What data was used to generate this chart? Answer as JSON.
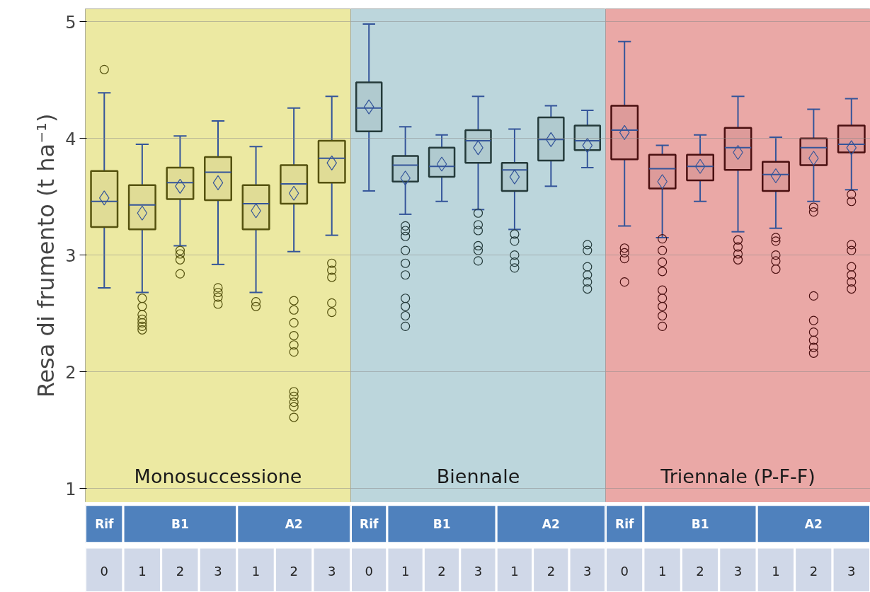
{
  "chart_data": [
    {
      "type": "box",
      "ylabel": "Resa di frumento (t ha⁻¹)",
      "categories": [
        "0",
        "1",
        "2",
        "3",
        "1",
        "2",
        "3"
      ],
      "annotations": [
        "Rif",
        "B1",
        "A2"
      ],
      "ylim": [
        0.88,
        5.11
      ],
      "yticks": [
        1,
        2,
        3,
        4,
        5
      ],
      "grid": "y",
      "bands": [
        {
          "axis": "y",
          "from": 0.88,
          "to": 5.11,
          "label": "Monosuccessione",
          "color": "#ece9a2"
        }
      ],
      "series": [
        {
          "color": "#55520f",
          "boxes": [
            {
              "low": 2.72,
              "q1": 3.24,
              "median": 3.46,
              "q3": 3.72,
              "high": 4.39,
              "mean": 3.49,
              "outliers": [
                4.59
              ]
            },
            {
              "low": 2.68,
              "q1": 3.22,
              "median": 3.43,
              "q3": 3.6,
              "high": 3.95,
              "mean": 3.36,
              "outliers": [
                2.63,
                2.56,
                2.49,
                2.45,
                2.42,
                2.39,
                2.36
              ]
            },
            {
              "low": 3.08,
              "q1": 3.48,
              "median": 3.62,
              "q3": 3.75,
              "high": 4.02,
              "mean": 3.59,
              "outliers": [
                3.04,
                3.01,
                2.96,
                2.84
              ]
            },
            {
              "low": 2.92,
              "q1": 3.47,
              "median": 3.71,
              "q3": 3.84,
              "high": 4.15,
              "mean": 3.62,
              "outliers": [
                2.72,
                2.68,
                2.64,
                2.58
              ]
            },
            {
              "low": 2.68,
              "q1": 3.22,
              "median": 3.44,
              "q3": 3.6,
              "high": 3.93,
              "mean": 3.38,
              "outliers": [
                2.6,
                2.56
              ]
            },
            {
              "low": 3.03,
              "q1": 3.44,
              "median": 3.61,
              "q3": 3.77,
              "high": 4.26,
              "mean": 3.53,
              "outliers": [
                2.61,
                2.53,
                2.42,
                2.31,
                2.23,
                2.17,
                1.83,
                1.79,
                1.74,
                1.7,
                1.61
              ]
            },
            {
              "low": 3.17,
              "q1": 3.62,
              "median": 3.83,
              "q3": 3.98,
              "high": 4.36,
              "mean": 3.79,
              "outliers": [
                2.93,
                2.87,
                2.81,
                2.59,
                2.51
              ]
            }
          ]
        }
      ]
    },
    {
      "type": "box",
      "categories": [
        "0",
        "1",
        "2",
        "3",
        "1",
        "2",
        "3"
      ],
      "annotations": [
        "Rif",
        "B1",
        "A2"
      ],
      "ylim": [
        0.88,
        5.11
      ],
      "yticks": [
        1,
        2,
        3,
        4,
        5
      ],
      "grid": "y",
      "tick_labels": "x",
      "bands": [
        {
          "axis": "y",
          "from": 0.88,
          "to": 5.11,
          "label": "Biennale",
          "color": "#bcd6dc"
        }
      ],
      "series": [
        {
          "color": "#243a3a",
          "boxes": [
            {
              "low": 3.55,
              "q1": 4.06,
              "median": 4.26,
              "q3": 4.48,
              "high": 4.98,
              "mean": 4.27
            },
            {
              "low": 3.35,
              "q1": 3.63,
              "median": 3.77,
              "q3": 3.85,
              "high": 4.1,
              "mean": 3.66,
              "outliers": [
                3.25,
                3.21,
                3.16,
                3.04,
                2.93,
                2.83,
                2.63,
                2.56,
                2.48,
                2.39
              ]
            },
            {
              "low": 3.46,
              "q1": 3.67,
              "median": 3.76,
              "q3": 3.92,
              "high": 4.03,
              "mean": 3.78
            },
            {
              "low": 3.39,
              "q1": 3.79,
              "median": 3.98,
              "q3": 4.07,
              "high": 4.36,
              "mean": 3.92,
              "outliers": [
                3.36,
                3.26,
                3.21,
                3.08,
                3.04,
                2.95
              ]
            },
            {
              "low": 3.22,
              "q1": 3.55,
              "median": 3.73,
              "q3": 3.79,
              "high": 4.08,
              "mean": 3.67,
              "outliers": [
                3.18,
                3.12,
                3.0,
                2.94,
                2.89
              ]
            },
            {
              "low": 3.59,
              "q1": 3.81,
              "median": 3.99,
              "q3": 4.18,
              "high": 4.28,
              "mean": 3.99
            },
            {
              "low": 3.75,
              "q1": 3.9,
              "median": 3.98,
              "q3": 4.11,
              "high": 4.24,
              "mean": 3.94,
              "outliers": [
                3.09,
                3.04,
                2.9,
                2.83,
                2.77,
                2.71
              ]
            }
          ]
        }
      ]
    },
    {
      "type": "box",
      "categories": [
        "0",
        "1",
        "2",
        "3",
        "1",
        "2",
        "3"
      ],
      "annotations": [
        "Rif",
        "B1",
        "A2"
      ],
      "ylim": [
        0.88,
        5.11
      ],
      "yticks": [
        1,
        2,
        3,
        4,
        5
      ],
      "grid": "y",
      "tick_labels": "x",
      "bands": [
        {
          "axis": "y",
          "from": 0.88,
          "to": 5.11,
          "label": "Triennale (P-F-F)",
          "color": "#eaa8a6"
        }
      ],
      "series": [
        {
          "color": "#4a0f10",
          "boxes": [
            {
              "low": 3.25,
              "q1": 3.82,
              "median": 4.07,
              "q3": 4.28,
              "high": 4.83,
              "mean": 4.05,
              "outliers": [
                3.06,
                3.02,
                2.97,
                2.77
              ]
            },
            {
              "low": 3.15,
              "q1": 3.57,
              "median": 3.74,
              "q3": 3.86,
              "high": 3.94,
              "mean": 3.63,
              "outliers": [
                3.14,
                3.04,
                2.94,
                2.86,
                2.7,
                2.63,
                2.56,
                2.48,
                2.39
              ]
            },
            {
              "low": 3.46,
              "q1": 3.64,
              "median": 3.76,
              "q3": 3.86,
              "high": 4.03,
              "mean": 3.76
            },
            {
              "low": 3.2,
              "q1": 3.73,
              "median": 3.92,
              "q3": 4.09,
              "high": 4.36,
              "mean": 3.88,
              "outliers": [
                3.13,
                3.07,
                3.01,
                2.96
              ]
            },
            {
              "low": 3.23,
              "q1": 3.55,
              "median": 3.69,
              "q3": 3.8,
              "high": 4.01,
              "mean": 3.68,
              "outliers": [
                3.15,
                3.12,
                3.0,
                2.95,
                2.88
              ]
            },
            {
              "low": 3.46,
              "q1": 3.77,
              "median": 3.92,
              "q3": 4.0,
              "high": 4.25,
              "mean": 3.83,
              "outliers": [
                3.41,
                3.37,
                2.65,
                2.44,
                2.34,
                2.27,
                2.21,
                2.16
              ]
            },
            {
              "low": 3.56,
              "q1": 3.88,
              "median": 3.95,
              "q3": 4.11,
              "high": 4.34,
              "mean": 3.92,
              "outliers": [
                3.52,
                3.46,
                3.09,
                3.04,
                2.9,
                2.83,
                2.77,
                2.71
              ]
            }
          ]
        }
      ]
    }
  ]
}
